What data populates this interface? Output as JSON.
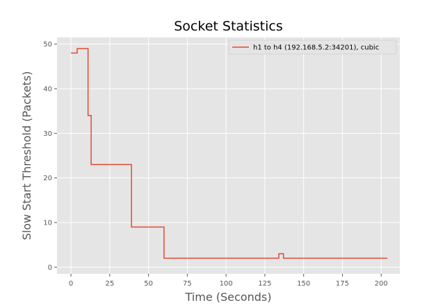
{
  "chart_data": {
    "type": "line",
    "title": "Socket Statistics",
    "xlabel": "Time (Seconds)",
    "ylabel": "Slow Start Threshold (Packets)",
    "xlim": [
      -9,
      212
    ],
    "ylim": [
      -1.5,
      51.5
    ],
    "xticks": [
      0,
      25,
      50,
      75,
      100,
      125,
      150,
      175,
      200
    ],
    "yticks": [
      0,
      10,
      20,
      30,
      40,
      50
    ],
    "grid": true,
    "legend_position": "top-right",
    "step": "post",
    "series": [
      {
        "name": "h1 to h4 (192.168.5.2:34201), cubic",
        "color": "#e24a33",
        "x": [
          0,
          4,
          11,
          12,
          13,
          39,
          60,
          134,
          137,
          204
        ],
        "y": [
          48,
          49,
          34,
          34,
          23,
          9,
          2,
          3,
          2,
          2
        ]
      }
    ]
  }
}
